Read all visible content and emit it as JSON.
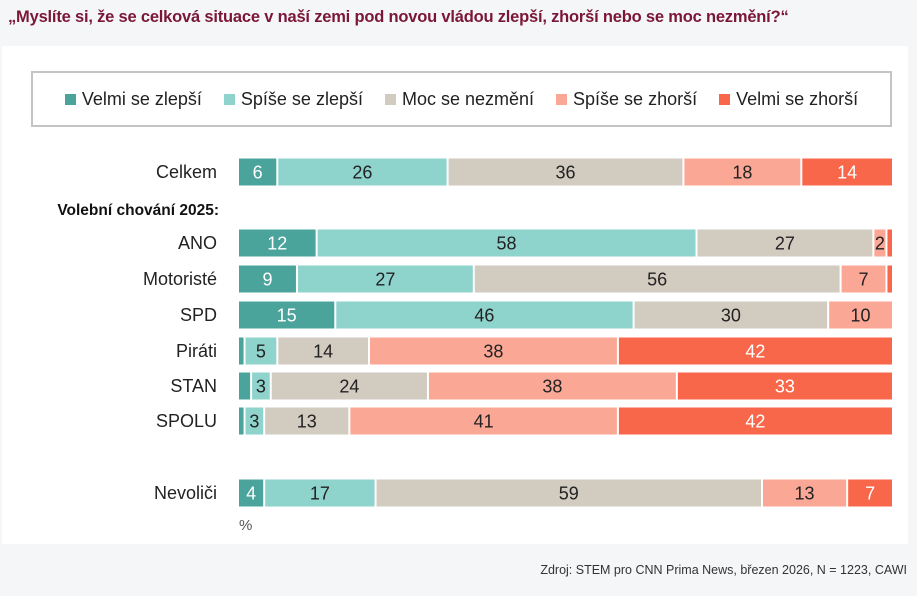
{
  "title": "„Myslíte si, že se celková situace v naší zemi pod novou vládou zlepší, zhorší nebo se moc nezmění?“",
  "source": "Zdroj: STEM pro CNN Prima News, březen 2026, N = 1223, CAWI",
  "chart_data": {
    "type": "bar",
    "orientation": "horizontal-stacked-100",
    "title": "„Myslíte si, že se celková situace v naší zemi pod novou vládou zlepší, zhorší nebo se moc nezmění?“",
    "xlabel": "%",
    "ylabel": "",
    "xlim": [
      0,
      100
    ],
    "grid": false,
    "legend_position": "top",
    "group_heading": "Volební chování 2025:",
    "series": [
      {
        "name": "Velmi se zlepší",
        "color": "#4aa49b",
        "label_color": "#ffffff"
      },
      {
        "name": "Spíše se zlepší",
        "color": "#8fd3cd",
        "label_color": "#222222"
      },
      {
        "name": "Moc se nezmění",
        "color": "#d1cbc0",
        "label_color": "#222222"
      },
      {
        "name": "Spíše se zhorší",
        "color": "#fba795",
        "label_color": "#222222"
      },
      {
        "name": "Velmi se zhorší",
        "color": "#f9674b",
        "label_color": "#ffffff"
      }
    ],
    "rows": [
      {
        "category": "Celkem",
        "values": [
          6,
          26,
          36,
          18,
          14
        ],
        "labels": [
          "6",
          "26",
          "36",
          "18",
          "14"
        ]
      },
      {
        "category": "ANO",
        "values": [
          12,
          58,
          27,
          2,
          1
        ],
        "labels": [
          "12",
          "58",
          "27",
          "2",
          ""
        ]
      },
      {
        "category": "Motoristé",
        "values": [
          9,
          27,
          56,
          7,
          1
        ],
        "labels": [
          "9",
          "27",
          "56",
          "7",
          ""
        ]
      },
      {
        "category": "SPD",
        "values": [
          15,
          46,
          30,
          10,
          0
        ],
        "labels": [
          "15",
          "46",
          "30",
          "10",
          ""
        ]
      },
      {
        "category": "Piráti",
        "values": [
          1,
          5,
          14,
          38,
          42
        ],
        "labels": [
          "",
          "5",
          "14",
          "38",
          "42"
        ]
      },
      {
        "category": "STAN",
        "values": [
          2,
          3,
          24,
          38,
          33
        ],
        "labels": [
          "",
          "3",
          "24",
          "38",
          "33"
        ]
      },
      {
        "category": "SPOLU",
        "values": [
          1,
          3,
          13,
          41,
          42
        ],
        "labels": [
          "",
          "3",
          "13",
          "41",
          "42"
        ]
      },
      {
        "category": "Nevoliči",
        "values": [
          4,
          17,
          59,
          13,
          7
        ],
        "labels": [
          "4",
          "17",
          "59",
          "13",
          "7"
        ]
      }
    ]
  }
}
